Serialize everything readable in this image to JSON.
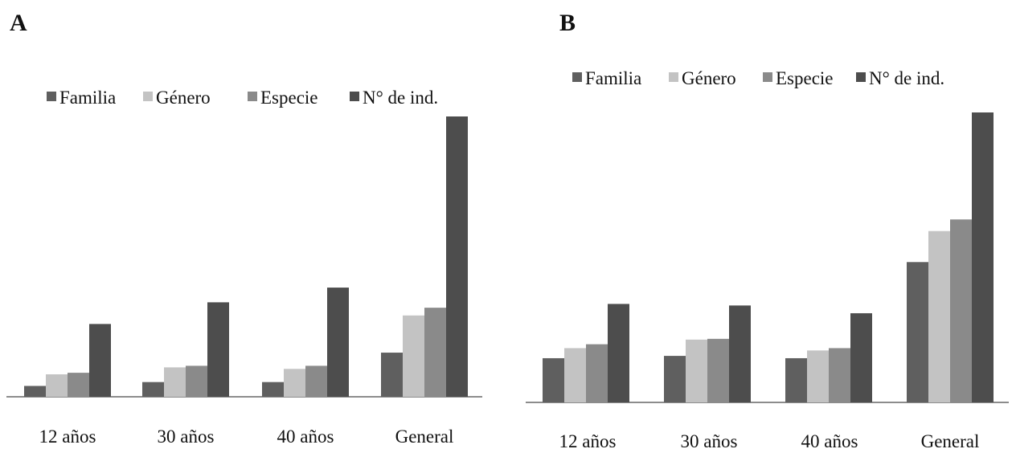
{
  "colors": {
    "Familia": "#5f5f5f",
    "Género": "#c3c3c3",
    "Especie": "#8a8a8a",
    "N° de ind.": "#4d4d4d",
    "axis": "#8c8c8c",
    "text": "#111111"
  },
  "chart_data": [
    {
      "panel_label": "A",
      "type": "bar",
      "categories": [
        "12 años",
        "30 años",
        "40 años",
        "General"
      ],
      "series": [
        {
          "name": "Familia",
          "values": [
            14,
            19,
            19,
            57
          ]
        },
        {
          "name": "Género",
          "values": [
            29,
            38,
            36,
            105
          ]
        },
        {
          "name": "Especie",
          "values": [
            31,
            40,
            40,
            115
          ]
        },
        {
          "name": "N° de ind.",
          "values": [
            94,
            122,
            141,
            362
          ]
        }
      ],
      "ylim": [
        0,
        362
      ],
      "grid": false,
      "legend": "top",
      "xlabel": "",
      "ylabel": ""
    },
    {
      "panel_label": "B",
      "type": "bar",
      "categories": [
        "12 años",
        "30 años",
        "40 años",
        "General"
      ],
      "series": [
        {
          "name": "Familia",
          "values": [
            57,
            60,
            57,
            181
          ]
        },
        {
          "name": "Género",
          "values": [
            70,
            81,
            67,
            221
          ]
        },
        {
          "name": "Especie",
          "values": [
            75,
            82,
            70,
            236
          ]
        },
        {
          "name": "N° de ind.",
          "values": [
            127,
            125,
            115,
            374
          ]
        }
      ],
      "ylim": [
        0,
        374
      ],
      "grid": false,
      "legend": "top",
      "xlabel": "",
      "ylabel": ""
    }
  ]
}
